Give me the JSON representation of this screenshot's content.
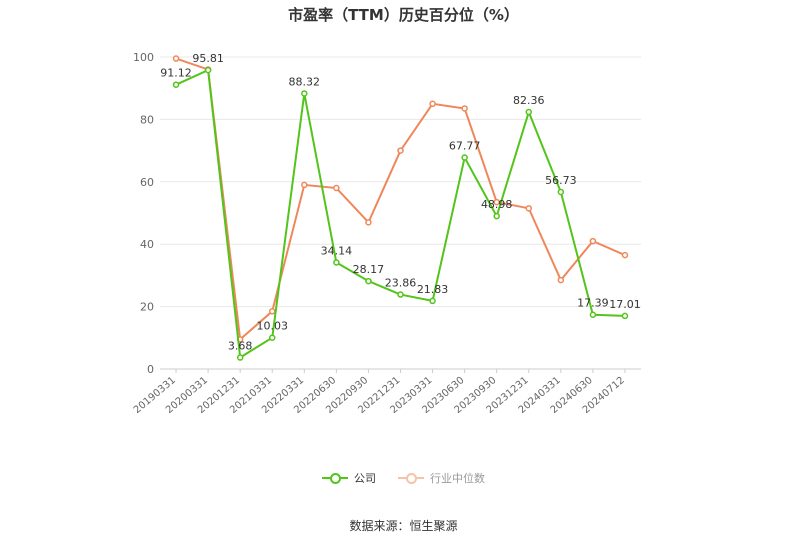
{
  "chart_data": {
    "type": "line",
    "title": "市盈率（TTM）历史百分位（%）",
    "categories": [
      "20190331",
      "20200331",
      "20201231",
      "20210331",
      "20220331",
      "20220630",
      "20220930",
      "20221231",
      "20230331",
      "20230630",
      "20230930",
      "20231231",
      "20240331",
      "20240630",
      "20240712"
    ],
    "series": [
      {
        "name": "公司",
        "color": "#52c41a",
        "values": [
          91.12,
          95.81,
          3.68,
          10.03,
          88.32,
          34.14,
          28.17,
          23.86,
          21.83,
          67.77,
          48.98,
          82.36,
          56.73,
          17.39,
          17.01
        ],
        "labels": [
          "91.12",
          "95.81",
          "3.68",
          "10.03",
          "88.32",
          "34.14",
          "28.17",
          "23.86",
          "21.83",
          "67.77",
          "48.98",
          "82.36",
          "56.73",
          "17.39",
          "17.01"
        ]
      },
      {
        "name": "行业中位数",
        "color": "#f0875a",
        "values": [
          99.5,
          96.0,
          9.5,
          18.5,
          59.0,
          58.0,
          47.0,
          70.0,
          85.0,
          83.5,
          53.5,
          51.5,
          28.5,
          41.0,
          36.5
        ]
      }
    ],
    "yticks": [
      "0",
      "20",
      "40",
      "60",
      "80",
      "100"
    ],
    "ylim": [
      0,
      100
    ],
    "grid": true,
    "legend_position": "bottom-center"
  },
  "source_text": "数据来源：恒生聚源"
}
